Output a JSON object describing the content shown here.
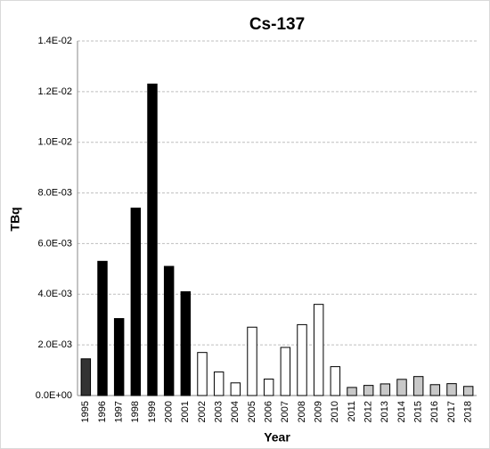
{
  "chart_data": {
    "type": "bar",
    "title": "Cs-137",
    "x_label": "Year",
    "y_label": "TBq",
    "categories": [
      "1995",
      "1996",
      "1997",
      "1998",
      "1999",
      "2000",
      "2001",
      "2002",
      "2003",
      "2004",
      "2005",
      "2006",
      "2007",
      "2008",
      "2009",
      "2010",
      "2011",
      "2012",
      "2013",
      "2014",
      "2015",
      "2016",
      "2017",
      "2018"
    ],
    "values": [
      0.00145,
      0.0053,
      0.00304,
      0.0074,
      0.0123,
      0.0051,
      0.0041,
      0.0017,
      0.00093,
      0.0005,
      0.0027,
      0.00065,
      0.0019,
      0.0028,
      0.0036,
      0.00114,
      0.00032,
      0.0004,
      0.00046,
      0.00064,
      0.00075,
      0.00043,
      0.00047,
      0.00036
    ],
    "colors": [
      "#333333",
      "#000000",
      "#000000",
      "#000000",
      "#000000",
      "#000000",
      "#000000",
      "#ffffff",
      "#ffffff",
      "#ffffff",
      "#ffffff",
      "#ffffff",
      "#ffffff",
      "#ffffff",
      "#ffffff",
      "#ffffff",
      "#c8c8c8",
      "#c8c8c8",
      "#c8c8c8",
      "#c8c8c8",
      "#c8c8c8",
      "#c8c8c8",
      "#c8c8c8",
      "#c8c8c8"
    ],
    "ylim": [
      0,
      0.014
    ],
    "yticks": [
      {
        "value": 0,
        "label": "0.0E+00"
      },
      {
        "value": 0.002,
        "label": "2.0E-03"
      },
      {
        "value": 0.004,
        "label": "4.0E-03"
      },
      {
        "value": 0.006,
        "label": "6.0E-03"
      },
      {
        "value": 0.008,
        "label": "8.0E-03"
      },
      {
        "value": 0.01,
        "label": "1.0E-02"
      },
      {
        "value": 0.012,
        "label": "1.2E-02"
      },
      {
        "value": 0.014,
        "label": "1.4E-02"
      }
    ],
    "grid": true
  }
}
